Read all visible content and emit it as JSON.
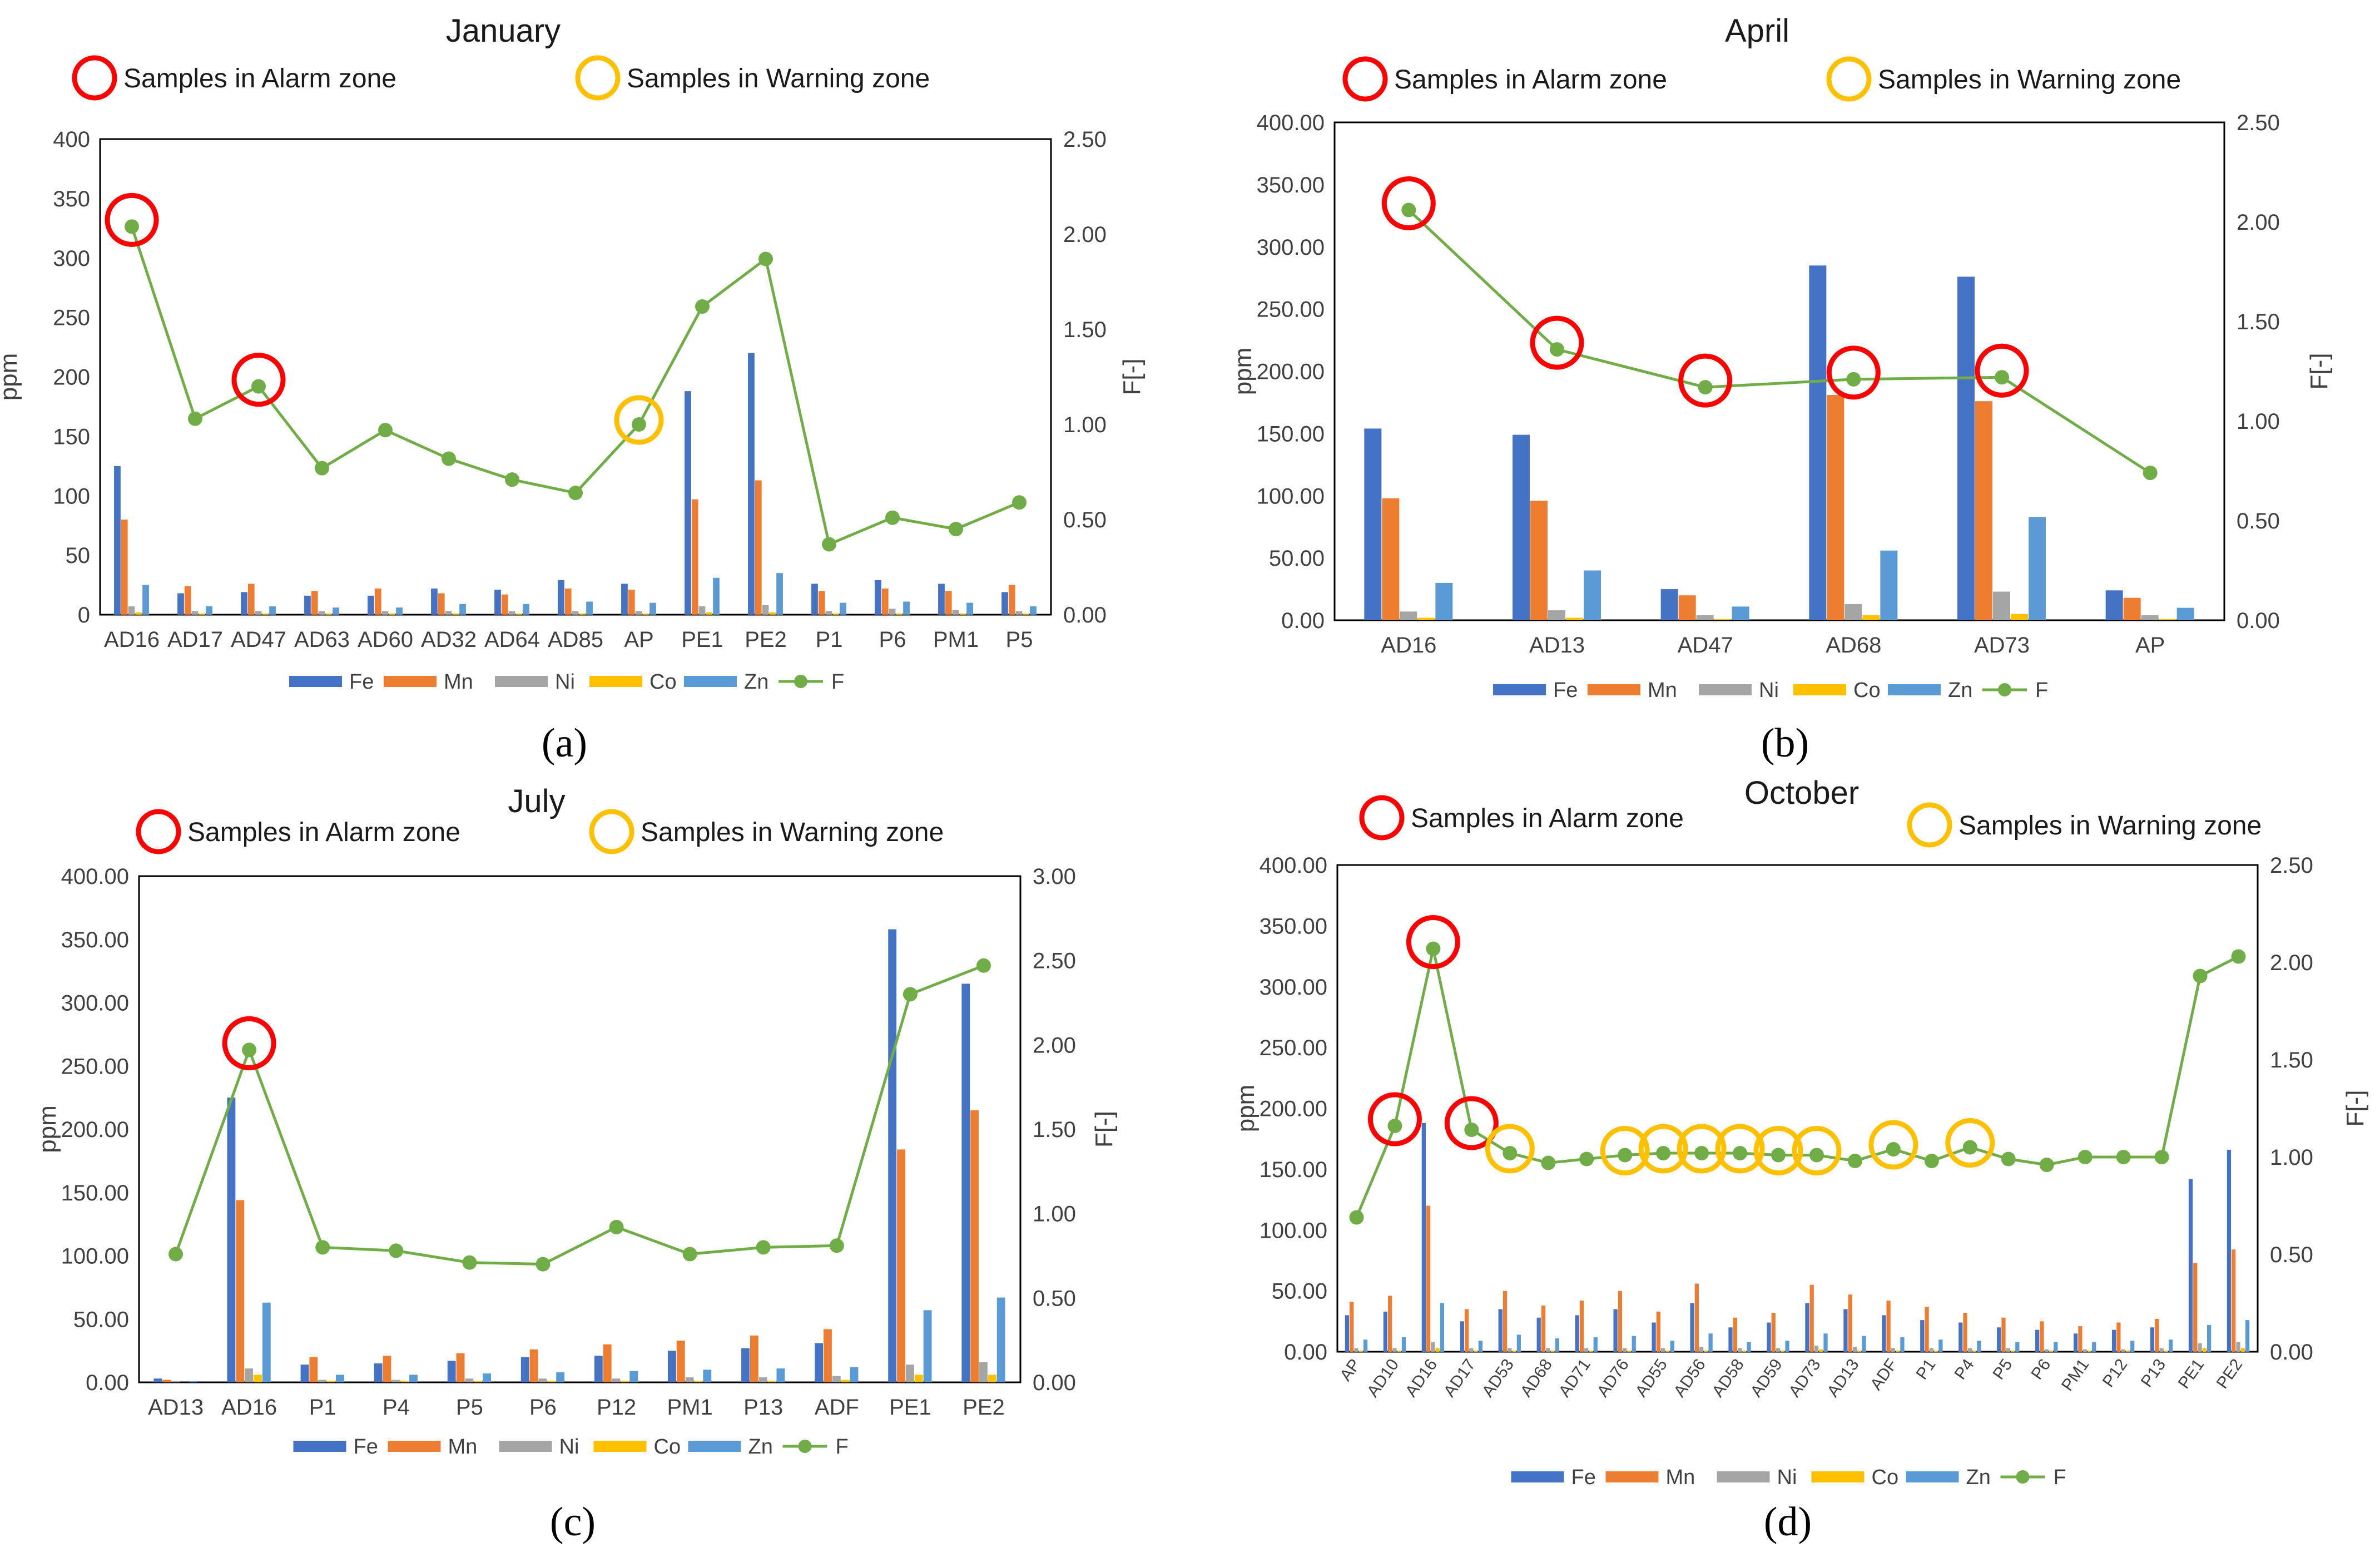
{
  "figure": {
    "colors": {
      "Fe": "#4472C4",
      "Mn": "#ED7D31",
      "Ni": "#A5A5A5",
      "Co": "#FFC000",
      "Zn": "#5B9BD5",
      "F": "#70AD47",
      "alarm": "#FF0000",
      "warning": "#FFC000"
    },
    "annotations": {
      "alarm": "Samples in Alarm zone",
      "warning": "Samples in Warning zone"
    }
  },
  "chart_data": [
    {
      "id": "january",
      "type": "bar",
      "title": "January",
      "caption": "(a)",
      "ylabel": "ppm",
      "y2label": "F[-]",
      "ylim": [
        0,
        400
      ],
      "yticks": [
        "0",
        "50",
        "100",
        "150",
        "200",
        "250",
        "300",
        "350",
        "400"
      ],
      "y2lim": [
        0,
        2.5
      ],
      "y2ticks": [
        "0.00",
        "0.50",
        "1.00",
        "1.50",
        "2.00",
        "2.50"
      ],
      "categories": [
        "AD16",
        "AD17",
        "AD47",
        "AD63",
        "AD60",
        "AD32",
        "AD64",
        "AD85",
        "AP",
        "PE1",
        "PE2",
        "P1",
        "P6",
        "PM1",
        "P5"
      ],
      "series": [
        {
          "name": "Fe",
          "values": [
            125,
            18,
            19,
            16,
            16,
            22,
            21,
            29,
            26,
            188,
            220,
            26,
            29,
            26,
            19
          ]
        },
        {
          "name": "Mn",
          "values": [
            80,
            24,
            26,
            20,
            22,
            18,
            17,
            22,
            21,
            97,
            113,
            20,
            22,
            20,
            25
          ]
        },
        {
          "name": "Ni",
          "values": [
            7,
            3,
            3,
            3,
            3,
            3,
            3,
            3,
            3,
            7,
            8,
            3,
            5,
            4,
            3
          ]
        },
        {
          "name": "Co",
          "values": [
            2,
            1,
            1,
            1,
            1,
            1,
            1,
            1,
            1,
            2,
            2,
            1,
            1,
            1,
            1
          ]
        },
        {
          "name": "Zn",
          "values": [
            25,
            7,
            7,
            6,
            6,
            9,
            9,
            11,
            10,
            31,
            35,
            10,
            11,
            10,
            7
          ]
        },
        {
          "name": "F",
          "axis": "secondary",
          "values": [
            2.04,
            1.03,
            1.2,
            0.77,
            0.97,
            0.82,
            0.71,
            0.64,
            1.0,
            1.62,
            1.87,
            0.37,
            0.51,
            0.45,
            0.59
          ]
        }
      ],
      "alarm_marks": [
        "AD16",
        "AD47"
      ],
      "warning_marks": [
        "AP"
      ]
    },
    {
      "id": "april",
      "type": "bar",
      "title": "April",
      "caption": "(b)",
      "ylabel": "ppm",
      "y2label": "F[-]",
      "ylim": [
        0,
        400
      ],
      "yticks": [
        "0.00",
        "50.00",
        "100.00",
        "150.00",
        "200.00",
        "250.00",
        "300.00",
        "350.00",
        "400.00"
      ],
      "y2lim": [
        0,
        2.5
      ],
      "y2ticks": [
        "0.00",
        "0.50",
        "1.00",
        "1.50",
        "2.00",
        "2.50"
      ],
      "categories": [
        "AD16",
        "AD13",
        "AD47",
        "AD68",
        "AD73",
        "AP"
      ],
      "series": [
        {
          "name": "Fe",
          "values": [
            154,
            149,
            25,
            285,
            276,
            24
          ]
        },
        {
          "name": "Mn",
          "values": [
            98,
            96,
            20,
            181,
            176,
            18
          ]
        },
        {
          "name": "Ni",
          "values": [
            7,
            8,
            4,
            13,
            23,
            4
          ]
        },
        {
          "name": "Co",
          "values": [
            2,
            2,
            1,
            4,
            5,
            1
          ]
        },
        {
          "name": "Zn",
          "values": [
            30,
            40,
            11,
            56,
            83,
            10
          ]
        },
        {
          "name": "F",
          "axis": "secondary",
          "values": [
            2.06,
            1.36,
            1.17,
            1.21,
            1.22,
            0.74
          ]
        }
      ],
      "alarm_marks": [
        "AD16",
        "AD13",
        "AD47",
        "AD68",
        "AD73"
      ],
      "warning_marks": []
    },
    {
      "id": "july",
      "type": "bar",
      "title": "July",
      "caption": "(c)",
      "ylabel": "ppm",
      "y2label": "F[-]",
      "ylim": [
        0,
        400
      ],
      "yticks": [
        "0.00",
        "50.00",
        "100.00",
        "150.00",
        "200.00",
        "250.00",
        "300.00",
        "350.00",
        "400.00"
      ],
      "y2lim": [
        0,
        3.0
      ],
      "y2ticks": [
        "0.00",
        "0.50",
        "1.00",
        "1.50",
        "2.00",
        "2.50",
        "3.00"
      ],
      "categories": [
        "AD13",
        "AD16",
        "P1",
        "P4",
        "P5",
        "P6",
        "P12",
        "PM1",
        "P13",
        "ADF",
        "PE1",
        "PE2"
      ],
      "series": [
        {
          "name": "Fe",
          "values": [
            3,
            225,
            14,
            15,
            17,
            20,
            21,
            25,
            27,
            31,
            358,
            315
          ]
        },
        {
          "name": "Mn",
          "values": [
            2,
            144,
            20,
            21,
            23,
            26,
            30,
            33,
            37,
            42,
            184,
            215
          ]
        },
        {
          "name": "Ni",
          "values": [
            1,
            11,
            2,
            2,
            3,
            3,
            3,
            4,
            4,
            5,
            14,
            16
          ]
        },
        {
          "name": "Co",
          "values": [
            0,
            6,
            1,
            1,
            1,
            1,
            1,
            1,
            1,
            2,
            6,
            6
          ]
        },
        {
          "name": "Zn",
          "values": [
            1,
            63,
            6,
            6,
            7,
            8,
            9,
            10,
            11,
            12,
            57,
            67
          ]
        },
        {
          "name": "F",
          "axis": "secondary",
          "values": [
            0.76,
            1.97,
            0.8,
            0.78,
            0.71,
            0.7,
            0.92,
            0.76,
            0.8,
            0.81,
            2.3,
            2.47
          ]
        }
      ],
      "alarm_marks": [
        "AD16"
      ],
      "warning_marks": []
    },
    {
      "id": "october",
      "type": "bar",
      "title": "October",
      "caption": "(d)",
      "ylabel": "ppm",
      "y2label": "F[-]",
      "ylim": [
        0,
        400
      ],
      "yticks": [
        "0.00",
        "50.00",
        "100.00",
        "150.00",
        "200.00",
        "250.00",
        "300.00",
        "350.00",
        "400.00"
      ],
      "y2lim": [
        0,
        2.5
      ],
      "y2ticks": [
        "0.00",
        "0.50",
        "1.00",
        "1.50",
        "2.00",
        "2.50"
      ],
      "categories": [
        "AP",
        "AD10",
        "AD16",
        "AD17",
        "AD53",
        "AD68",
        "AD71",
        "AD76",
        "AD55",
        "AD56",
        "AD58",
        "AD59",
        "AD73",
        "AD13",
        "ADF",
        "P1",
        "P4",
        "P5",
        "P6",
        "PM1",
        "P12",
        "P13",
        "PE1",
        "PE2"
      ],
      "series": [
        {
          "name": "Fe",
          "values": [
            30,
            33,
            188,
            25,
            35,
            28,
            30,
            35,
            24,
            40,
            20,
            24,
            40,
            35,
            30,
            26,
            24,
            20,
            18,
            15,
            18,
            20,
            142,
            166
          ]
        },
        {
          "name": "Mn",
          "values": [
            41,
            46,
            120,
            35,
            50,
            38,
            42,
            50,
            33,
            56,
            28,
            32,
            55,
            47,
            42,
            37,
            32,
            28,
            25,
            21,
            24,
            27,
            73,
            84
          ]
        },
        {
          "name": "Ni",
          "values": [
            3,
            3,
            8,
            3,
            3,
            3,
            3,
            3,
            3,
            4,
            3,
            3,
            5,
            4,
            3,
            3,
            3,
            3,
            2,
            2,
            2,
            3,
            7,
            8
          ]
        },
        {
          "name": "Co",
          "values": [
            1,
            1,
            3,
            1,
            1,
            1,
            1,
            1,
            1,
            1,
            1,
            1,
            2,
            1,
            1,
            1,
            1,
            1,
            1,
            1,
            1,
            1,
            3,
            3
          ]
        },
        {
          "name": "Zn",
          "values": [
            10,
            12,
            40,
            9,
            14,
            11,
            12,
            13,
            9,
            15,
            8,
            9,
            15,
            13,
            12,
            10,
            9,
            8,
            8,
            8,
            9,
            10,
            22,
            26
          ]
        },
        {
          "name": "F",
          "axis": "secondary",
          "values": [
            0.69,
            1.16,
            2.07,
            1.14,
            1.02,
            0.97,
            0.99,
            1.01,
            1.02,
            1.02,
            1.02,
            1.01,
            1.01,
            0.98,
            1.04,
            0.98,
            1.05,
            0.99,
            0.96,
            1.0,
            1.0,
            1.0,
            1.93,
            2.03
          ]
        }
      ],
      "alarm_marks": [
        "AD10",
        "AD16",
        "AD17"
      ],
      "warning_marks": [
        "AD53",
        "AD76",
        "AD55",
        "AD56",
        "AD58",
        "AD59",
        "AD73",
        "ADF",
        "P4"
      ]
    }
  ]
}
